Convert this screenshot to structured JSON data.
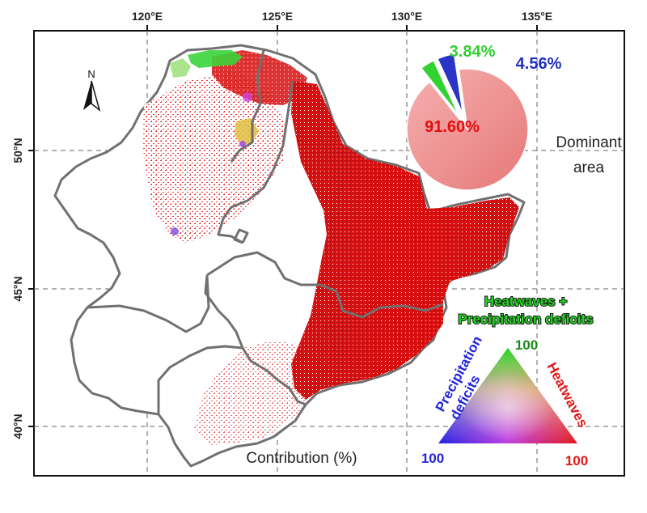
{
  "map": {
    "lon_ticks": [
      "120°E",
      "125°E",
      "130°E",
      "135°E"
    ],
    "lat_ticks": [
      "50°N",
      "45°N",
      "40°N"
    ],
    "north_label": "N",
    "contribution_label": "Contribution (%)"
  },
  "chart_data": {
    "type": "pie",
    "title": "Dominant area",
    "title_lines": [
      "Dominant",
      "area"
    ],
    "slices": [
      {
        "name": "Heatwaves",
        "label": "91.60%",
        "value": 91.6,
        "color": "#f08a8a",
        "text_color": "#e11010"
      },
      {
        "name": "Heatwaves + Precipitation deficits",
        "label": "3.84%",
        "value": 3.84,
        "color": "#32d232",
        "text_color": "#2fcf2f"
      },
      {
        "name": "Precipitation deficits",
        "label": "4.56%",
        "value": 4.56,
        "color": "#2a35c8",
        "text_color": "#1f2fbf"
      }
    ]
  },
  "ternary_legend": {
    "top_label_lines": [
      "Heatwaves +",
      "Precipitation deficits"
    ],
    "left_label_lines": [
      "Precipitation",
      "deficits"
    ],
    "right_label": "Heatwaves",
    "top_value": "100",
    "left_value": "100",
    "right_value": "100",
    "colors": {
      "green": "#1fd81f",
      "blue": "#2222e0",
      "red": "#e01818"
    }
  }
}
